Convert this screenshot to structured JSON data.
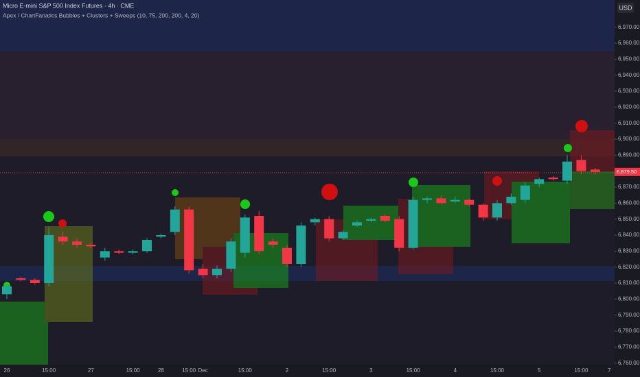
{
  "chart_data": {
    "type": "candlestick",
    "title": "Micro E-mini S&P 500 Index Futures · 4h · CME",
    "subtitle": "Apex / ChartFanatics Bubbles + Clusters + Sweeps (10, 75, 200, 200, 4, 20)",
    "currency": "USD",
    "categories": [
      "26",
      null,
      null,
      "15:00",
      null,
      null,
      "27",
      null,
      null,
      "15:00",
      null,
      "28",
      null,
      "15:00",
      "Dec",
      null,
      null,
      "15:00",
      null,
      null,
      "2",
      null,
      null,
      "15:00",
      null,
      null,
      "3",
      null,
      null,
      "15:00",
      null,
      null,
      "4",
      null,
      null,
      "15:00",
      null,
      null,
      "5",
      null,
      null,
      "15:00",
      null,
      "7"
    ],
    "open": [
      6803,
      6813,
      6812,
      6810,
      6839,
      6836,
      6834,
      6826,
      6830,
      6829,
      6830,
      6839,
      6842,
      6856,
      6819,
      6815,
      6819,
      6829,
      6852,
      6836,
      6832,
      6822,
      6848,
      6850,
      6838,
      6846,
      6849,
      6852,
      6850,
      6832,
      6862,
      6863,
      6861,
      6862,
      6859,
      6851,
      6860,
      6862,
      6872,
      6876,
      6874,
      6887,
      6881,
      null
    ],
    "high": [
      6810,
      6814,
      6813,
      6845,
      6842,
      6838,
      6835,
      6832,
      6831,
      6831,
      6838,
      6841,
      6858,
      6858,
      6822,
      6821,
      6838,
      6853,
      6855,
      6838,
      6834,
      6848,
      6851,
      6852,
      6843,
      6849,
      6851,
      6853,
      6852,
      6864,
      6864,
      6865,
      6864,
      6863,
      6860,
      6862,
      6866,
      6873,
      6876,
      6877,
      6890,
      6890,
      6882,
      null
    ],
    "low": [
      6800,
      6811,
      6809,
      6808,
      6834,
      6832,
      6832,
      6824,
      6828,
      6828,
      6829,
      6838,
      6840,
      6816,
      6813,
      6813,
      6817,
      6826,
      6828,
      6832,
      6820,
      6820,
      6846,
      6836,
      6837,
      6845,
      6848,
      6848,
      6830,
      6831,
      6860,
      6859,
      6860,
      6858,
      6849,
      6849,
      6859,
      6860,
      6870,
      6874,
      6872,
      6878,
      6878,
      null
    ],
    "close": [
      6808,
      6812,
      6810,
      6840,
      6836,
      6834,
      6833,
      6830,
      6829,
      6830,
      6837,
      6840,
      6856,
      6818,
      6815,
      6819,
      6836,
      6851,
      6830,
      6834,
      6822,
      6846,
      6850,
      6838,
      6842,
      6848,
      6850,
      6849,
      6832,
      6862,
      6863,
      6860,
      6862,
      6859,
      6851,
      6860,
      6864,
      6871,
      6875,
      6875,
      6886,
      6880,
      6879.5,
      null
    ],
    "up_color": "#22a69a",
    "down_color": "#f23645",
    "ylim": [
      6759,
      6987
    ],
    "yticks": [
      {
        "value": 6760,
        "label": "6,760.00"
      },
      {
        "value": 6770,
        "label": "6,770.00"
      },
      {
        "value": 6780,
        "label": "6,780.00"
      },
      {
        "value": 6790,
        "label": "6,790.00"
      },
      {
        "value": 6800,
        "label": "6,800.00"
      },
      {
        "value": 6810,
        "label": "6,810.00"
      },
      {
        "value": 6820,
        "label": "6,820.00"
      },
      {
        "value": 6830,
        "label": "6,830.00"
      },
      {
        "value": 6840,
        "label": "6,840.00"
      },
      {
        "value": 6850,
        "label": "6,850.00"
      },
      {
        "value": 6860,
        "label": "6,860.00"
      },
      {
        "value": 6870,
        "label": "6,870.00"
      },
      {
        "value": 6890,
        "label": "6,890.00"
      },
      {
        "value": 6900,
        "label": "6,900.00"
      },
      {
        "value": 6910,
        "label": "6,910.00"
      },
      {
        "value": 6920,
        "label": "6,920.00"
      },
      {
        "value": 6930,
        "label": "6,930.00"
      },
      {
        "value": 6940,
        "label": "6,940.00"
      },
      {
        "value": 6950,
        "label": "6,950.00"
      },
      {
        "value": 6960,
        "label": "6,960.00"
      },
      {
        "value": 6970,
        "label": "6,970.00"
      }
    ],
    "last_price": {
      "value": 6879.5,
      "label": "6,879.50"
    }
  }
}
